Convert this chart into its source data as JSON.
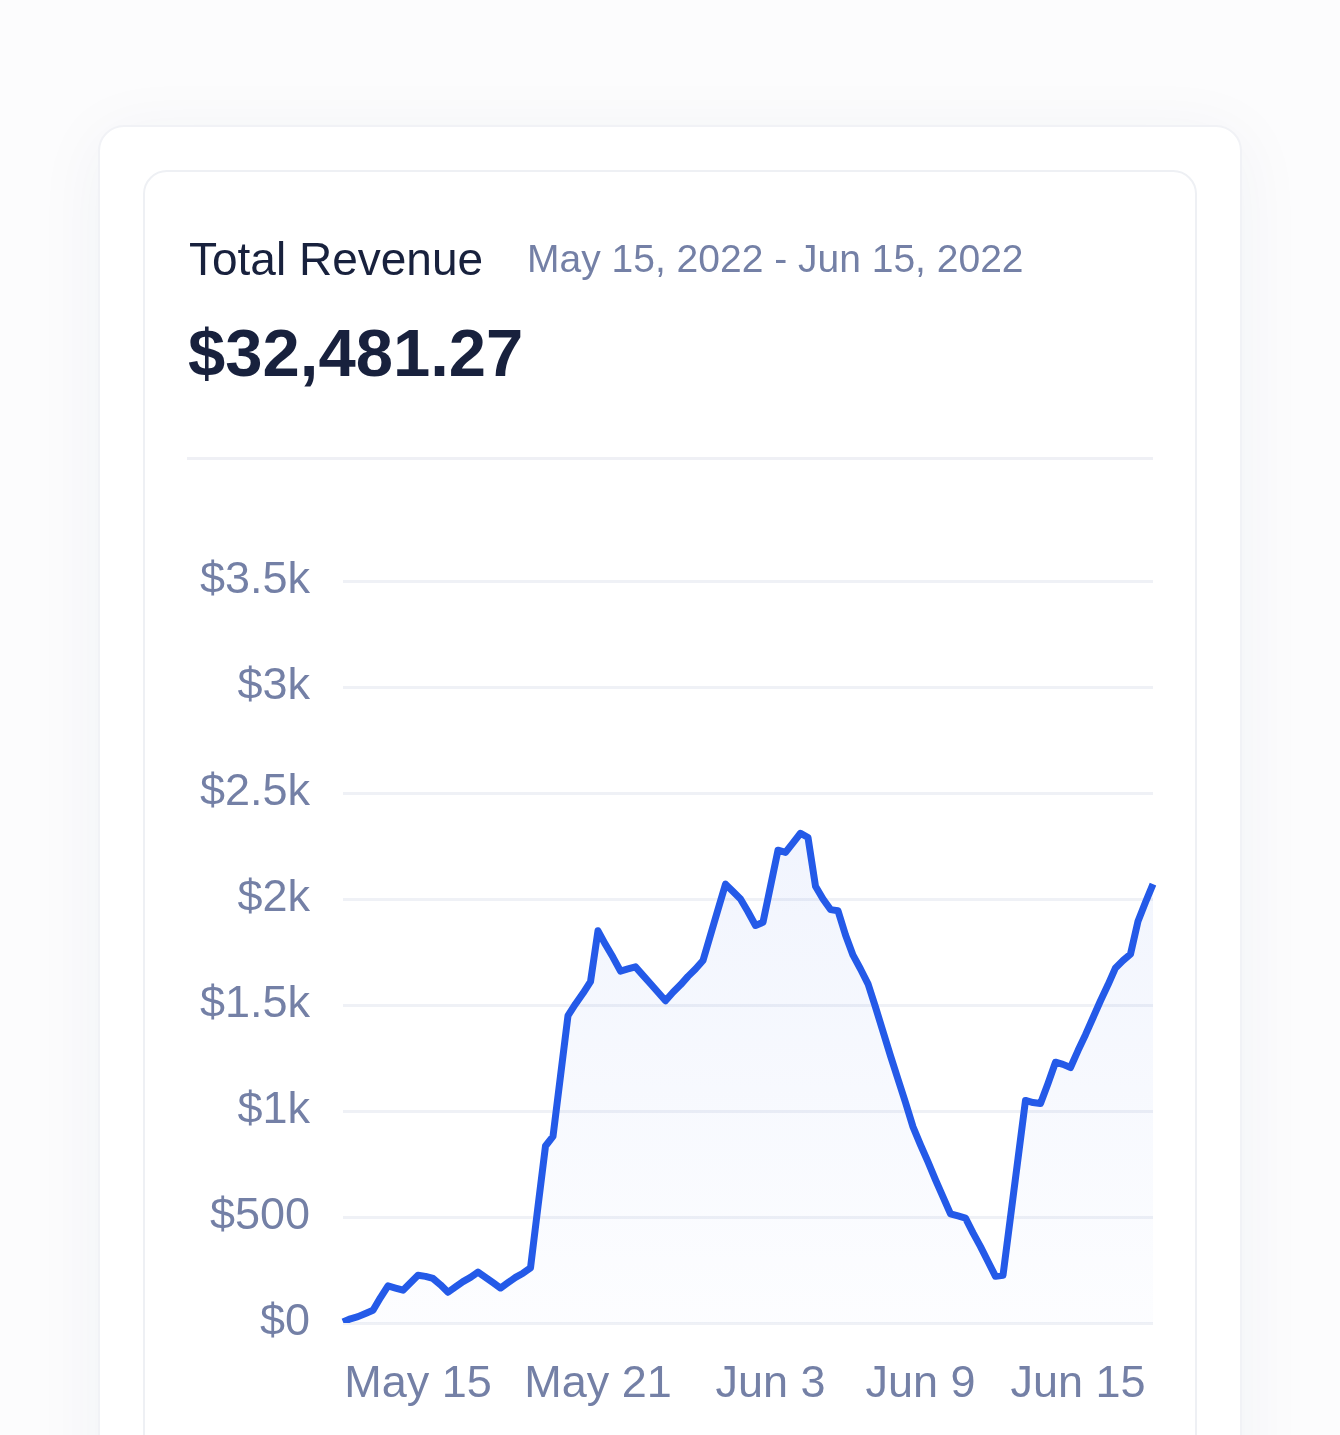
{
  "chart_data": {
    "type": "area",
    "title": "Total Revenue",
    "subtitle": "May 15, 2022 - Jun 15, 2022",
    "annotations": [
      "$32,481.27"
    ],
    "categories": [
      null,
      null,
      null,
      null,
      null,
      null,
      null,
      null,
      null,
      null,
      "May 15",
      null,
      null,
      null,
      null,
      null,
      null,
      null,
      null,
      null,
      null,
      null,
      null,
      null,
      null,
      null,
      null,
      null,
      null,
      null,
      null,
      null,
      null,
      null,
      "May 21",
      null,
      null,
      null,
      null,
      null,
      null,
      null,
      null,
      null,
      null,
      null,
      null,
      null,
      null,
      null,
      null,
      null,
      null,
      null,
      null,
      null,
      null,
      "Jun 3",
      null,
      null,
      null,
      null,
      null,
      null,
      null,
      null,
      null,
      null,
      null,
      null,
      null,
      null,
      null,
      null,
      null,
      null,
      null,
      "Jun 9",
      null,
      null,
      null,
      null,
      null,
      null,
      null,
      null,
      null,
      null,
      null,
      null,
      null,
      null,
      null,
      null,
      null,
      null,
      null,
      null,
      "Jun 15",
      null,
      null,
      null,
      null,
      null,
      null,
      null,
      null,
      null,
      null
    ],
    "color": "#245ae8",
    "values": [
      5,
      20,
      30,
      45,
      60,
      120,
      175,
      165,
      155,
      190,
      225,
      220,
      210,
      180,
      145,
      170,
      195,
      215,
      240,
      215,
      190,
      165,
      190,
      215,
      235,
      260,
      550,
      835,
      880,
      1165,
      1450,
      1505,
      1555,
      1610,
      1850,
      1785,
      1725,
      1660,
      1670,
      1680,
      1640,
      1600,
      1560,
      1520,
      1560,
      1595,
      1635,
      1670,
      1710,
      1830,
      1950,
      2070,
      2035,
      2000,
      1940,
      1875,
      1890,
      2060,
      2230,
      2220,
      2265,
      2310,
      2290,
      2060,
      2000,
      1950,
      1945,
      1830,
      1735,
      1670,
      1600,
      1490,
      1375,
      1260,
      1150,
      1040,
      925,
      840,
      760,
      675,
      595,
      515,
      505,
      495,
      425,
      360,
      290,
      220,
      225,
      500,
      775,
      1050,
      1040,
      1035,
      1130,
      1230,
      1220,
      1205,
      1285,
      1360,
      1440,
      1520,
      1595,
      1675,
      1710,
      1740,
      1895,
      1985,
      2070
    ],
    "ylim": [
      0,
      3500
    ],
    "yticks": [
      {
        "value": 0,
        "label": "$0"
      },
      {
        "value": 500,
        "label": "$500"
      },
      {
        "value": 1000,
        "label": "$1k"
      },
      {
        "value": 1500,
        "label": "$1.5k"
      },
      {
        "value": 2000,
        "label": "$2k"
      },
      {
        "value": 2500,
        "label": "$2.5k"
      },
      {
        "value": 3000,
        "label": "$3k"
      },
      {
        "value": 3500,
        "label": "$3.5k"
      }
    ],
    "grid": "y"
  }
}
